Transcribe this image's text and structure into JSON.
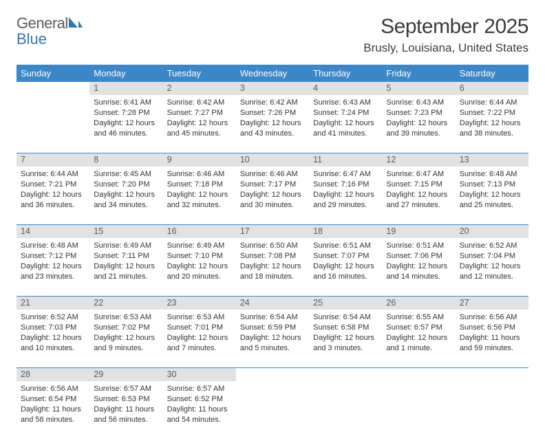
{
  "logo": {
    "line1": "General",
    "line2": "Blue"
  },
  "title": "September 2025",
  "location": "Brusly, Louisiana, United States",
  "colors": {
    "header_bg": "#3b87c8",
    "header_fg": "#ffffff",
    "num_bg": "#e2e2e2",
    "text": "#333333",
    "title": "#3b3b3b",
    "accent": "#2f77b6"
  },
  "days": [
    "Sunday",
    "Monday",
    "Tuesday",
    "Wednesday",
    "Thursday",
    "Friday",
    "Saturday"
  ],
  "weeks": [
    [
      null,
      {
        "n": "1",
        "sr": "6:41 AM",
        "ss": "7:28 PM",
        "dl": "12 hours and 46 minutes."
      },
      {
        "n": "2",
        "sr": "6:42 AM",
        "ss": "7:27 PM",
        "dl": "12 hours and 45 minutes."
      },
      {
        "n": "3",
        "sr": "6:42 AM",
        "ss": "7:26 PM",
        "dl": "12 hours and 43 minutes."
      },
      {
        "n": "4",
        "sr": "6:43 AM",
        "ss": "7:24 PM",
        "dl": "12 hours and 41 minutes."
      },
      {
        "n": "5",
        "sr": "6:43 AM",
        "ss": "7:23 PM",
        "dl": "12 hours and 39 minutes."
      },
      {
        "n": "6",
        "sr": "6:44 AM",
        "ss": "7:22 PM",
        "dl": "12 hours and 38 minutes."
      }
    ],
    [
      {
        "n": "7",
        "sr": "6:44 AM",
        "ss": "7:21 PM",
        "dl": "12 hours and 36 minutes."
      },
      {
        "n": "8",
        "sr": "6:45 AM",
        "ss": "7:20 PM",
        "dl": "12 hours and 34 minutes."
      },
      {
        "n": "9",
        "sr": "6:46 AM",
        "ss": "7:18 PM",
        "dl": "12 hours and 32 minutes."
      },
      {
        "n": "10",
        "sr": "6:46 AM",
        "ss": "7:17 PM",
        "dl": "12 hours and 30 minutes."
      },
      {
        "n": "11",
        "sr": "6:47 AM",
        "ss": "7:16 PM",
        "dl": "12 hours and 29 minutes."
      },
      {
        "n": "12",
        "sr": "6:47 AM",
        "ss": "7:15 PM",
        "dl": "12 hours and 27 minutes."
      },
      {
        "n": "13",
        "sr": "6:48 AM",
        "ss": "7:13 PM",
        "dl": "12 hours and 25 minutes."
      }
    ],
    [
      {
        "n": "14",
        "sr": "6:48 AM",
        "ss": "7:12 PM",
        "dl": "12 hours and 23 minutes."
      },
      {
        "n": "15",
        "sr": "6:49 AM",
        "ss": "7:11 PM",
        "dl": "12 hours and 21 minutes."
      },
      {
        "n": "16",
        "sr": "6:49 AM",
        "ss": "7:10 PM",
        "dl": "12 hours and 20 minutes."
      },
      {
        "n": "17",
        "sr": "6:50 AM",
        "ss": "7:08 PM",
        "dl": "12 hours and 18 minutes."
      },
      {
        "n": "18",
        "sr": "6:51 AM",
        "ss": "7:07 PM",
        "dl": "12 hours and 16 minutes."
      },
      {
        "n": "19",
        "sr": "6:51 AM",
        "ss": "7:06 PM",
        "dl": "12 hours and 14 minutes."
      },
      {
        "n": "20",
        "sr": "6:52 AM",
        "ss": "7:04 PM",
        "dl": "12 hours and 12 minutes."
      }
    ],
    [
      {
        "n": "21",
        "sr": "6:52 AM",
        "ss": "7:03 PM",
        "dl": "12 hours and 10 minutes."
      },
      {
        "n": "22",
        "sr": "6:53 AM",
        "ss": "7:02 PM",
        "dl": "12 hours and 9 minutes."
      },
      {
        "n": "23",
        "sr": "6:53 AM",
        "ss": "7:01 PM",
        "dl": "12 hours and 7 minutes."
      },
      {
        "n": "24",
        "sr": "6:54 AM",
        "ss": "6:59 PM",
        "dl": "12 hours and 5 minutes."
      },
      {
        "n": "25",
        "sr": "6:54 AM",
        "ss": "6:58 PM",
        "dl": "12 hours and 3 minutes."
      },
      {
        "n": "26",
        "sr": "6:55 AM",
        "ss": "6:57 PM",
        "dl": "12 hours and 1 minute."
      },
      {
        "n": "27",
        "sr": "6:56 AM",
        "ss": "6:56 PM",
        "dl": "11 hours and 59 minutes."
      }
    ],
    [
      {
        "n": "28",
        "sr": "6:56 AM",
        "ss": "6:54 PM",
        "dl": "11 hours and 58 minutes."
      },
      {
        "n": "29",
        "sr": "6:57 AM",
        "ss": "6:53 PM",
        "dl": "11 hours and 56 minutes."
      },
      {
        "n": "30",
        "sr": "6:57 AM",
        "ss": "6:52 PM",
        "dl": "11 hours and 54 minutes."
      },
      null,
      null,
      null,
      null
    ]
  ],
  "labels": {
    "sunrise": "Sunrise:",
    "sunset": "Sunset:",
    "daylight": "Daylight:"
  }
}
